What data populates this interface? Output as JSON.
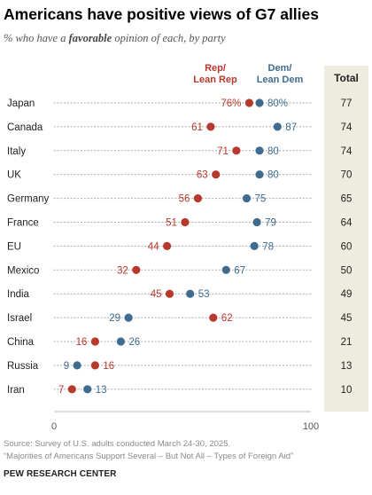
{
  "title": "Americans have positive views of G7 allies",
  "subtitle": {
    "before": "% who have a ",
    "emphasis": "favorable",
    "after": " opinion of each, by party"
  },
  "chart_data": {
    "type": "scatter",
    "subtype": "dot-plot",
    "categories": [
      "Japan",
      "Canada",
      "Italy",
      "UK",
      "Germany",
      "France",
      "EU",
      "Mexico",
      "India",
      "Israel",
      "China",
      "Russia",
      "Iran"
    ],
    "series": [
      {
        "name": "Rep/\nLean Rep",
        "color": "#b7382c",
        "values": [
          76,
          61,
          71,
          63,
          56,
          51,
          44,
          32,
          45,
          62,
          16,
          16,
          7
        ],
        "labels": [
          "76%",
          "61",
          "71",
          "63",
          "56",
          "51",
          "44",
          "32",
          "45",
          "62",
          "16",
          "16",
          "7"
        ]
      },
      {
        "name": "Dem/\nLean Dem",
        "color": "#3f6b8f",
        "values": [
          80,
          87,
          80,
          80,
          75,
          79,
          78,
          67,
          53,
          29,
          26,
          9,
          13
        ],
        "labels": [
          "80%",
          "87",
          "80",
          "80",
          "75",
          "79",
          "78",
          "67",
          "53",
          "29",
          "26",
          "9",
          "13"
        ]
      }
    ],
    "total": {
      "label": "Total",
      "values": [
        "77",
        "74",
        "74",
        "70",
        "65",
        "64",
        "60",
        "50",
        "49",
        "45",
        "21",
        "13",
        "10"
      ],
      "background": "#eeebdf"
    },
    "xlim": [
      0,
      100
    ],
    "xticks": [
      "0",
      "100"
    ],
    "grid": "dotted row guides",
    "legend": "top, above markers"
  },
  "footer": {
    "source": "Source: Survey of U.S. adults conducted March 24-30, 2025.",
    "report": "“Majorities of Americans Support Several – But Not All – Types of Foreign Aid”",
    "org": "PEW RESEARCH CENTER"
  }
}
